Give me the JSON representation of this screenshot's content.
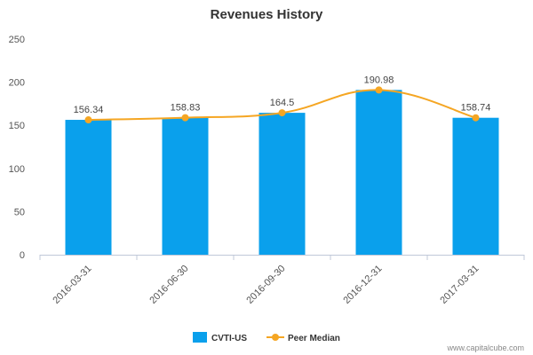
{
  "chart_data": {
    "type": "bar",
    "title": "Revenues History",
    "categories": [
      "2016-03-31",
      "2016-06-30",
      "2016-09-30",
      "2016-12-31",
      "2017-03-31"
    ],
    "series": [
      {
        "name": "CVTI-US",
        "type": "bar",
        "color": "#0aa0ec",
        "values": [
          156.34,
          158.83,
          164.5,
          190.98,
          158.74
        ]
      },
      {
        "name": "Peer Median",
        "type": "line",
        "color": "#f5a623",
        "values": [
          156.34,
          158.83,
          164.5,
          190.98,
          158.74
        ]
      }
    ],
    "data_labels": [
      "156.34",
      "158.83",
      "164.5",
      "190.98",
      "158.74"
    ],
    "ylim": [
      0,
      250
    ],
    "yticks": [
      0,
      50,
      100,
      150,
      200,
      250
    ],
    "legend_position": "bottom-center",
    "grid": false
  },
  "credit": "www.capitalcube.com"
}
